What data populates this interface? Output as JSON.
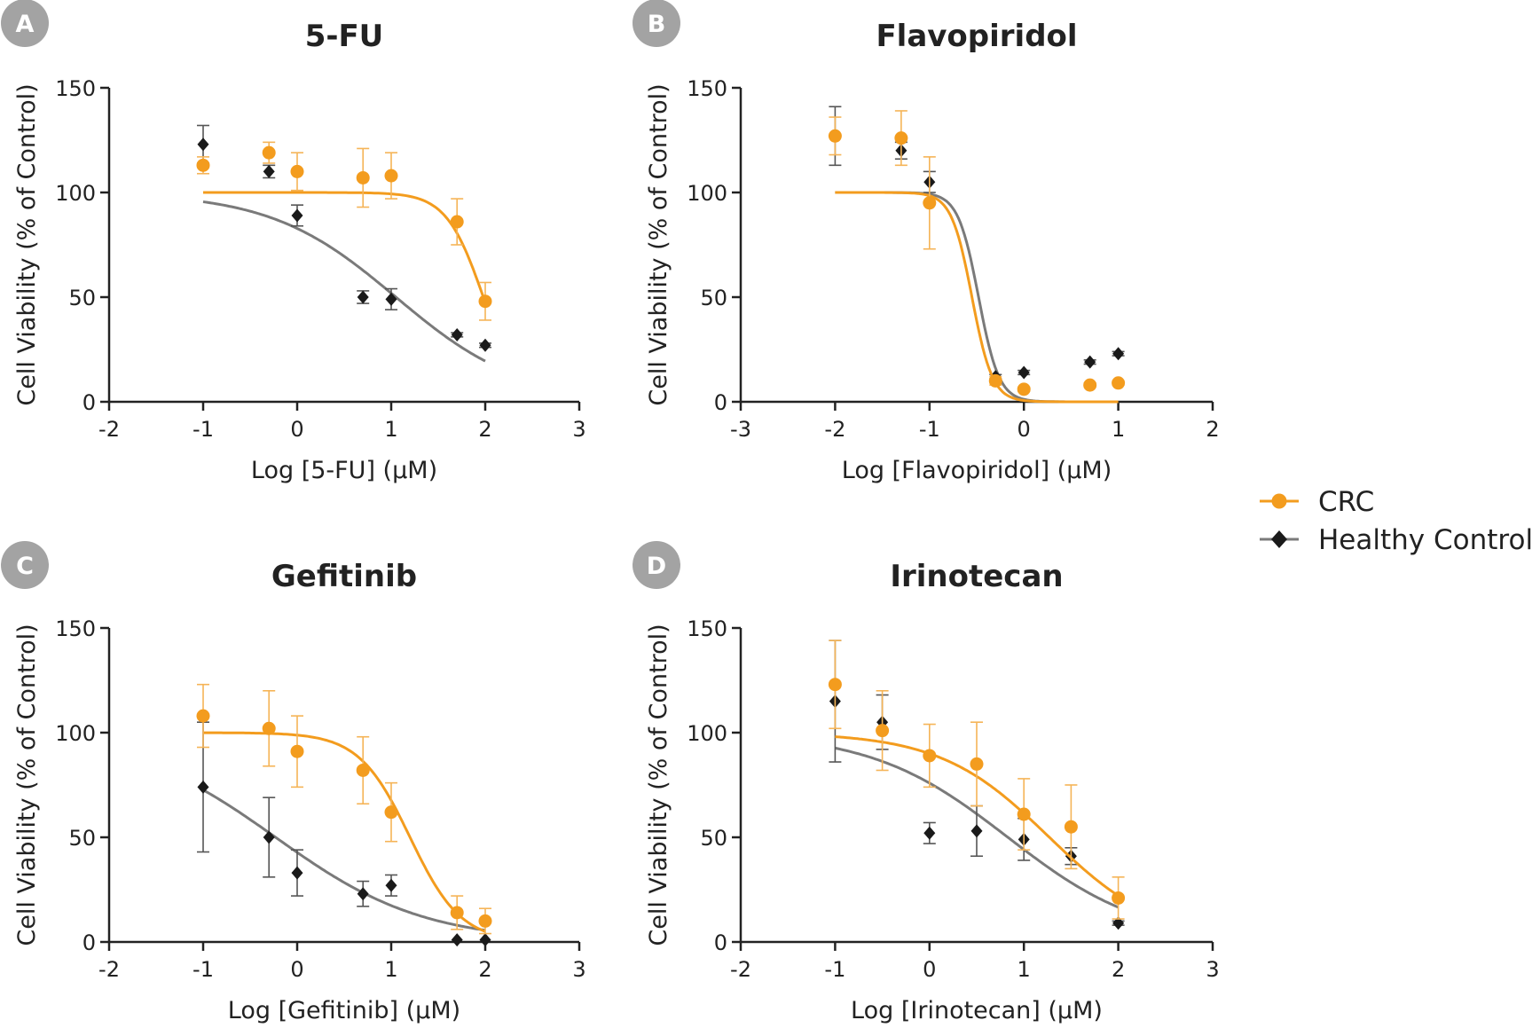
{
  "colors": {
    "crc": "#F39C1E",
    "healthy": "#1a1a1a",
    "healthy_curve": "#7a7a7a",
    "crc_err": "#F5B457",
    "healthy_err": "#555555",
    "badge": "#a3a3a3"
  },
  "legend": {
    "crc_label": "CRC",
    "healthy_label": "Healthy Control"
  },
  "chart_data": [
    {
      "panel": "A",
      "type": "scatter",
      "title": "5-FU",
      "xlabel": "Log [5-FU] (μM)",
      "ylabel": "Cell Viability (% of Control)",
      "xlim": [
        -2,
        3
      ],
      "ylim": [
        0,
        150
      ],
      "xticks": [
        "-2",
        "-1",
        "0",
        "1",
        "2",
        "3"
      ],
      "yticks": [
        "0",
        "50",
        "100",
        "150"
      ],
      "series": [
        {
          "name": "CRC",
          "marker": "circle",
          "points": [
            {
              "x": -1,
              "y": 113,
              "err": 4
            },
            {
              "x": -0.3,
              "y": 119,
              "err": 5
            },
            {
              "x": 0,
              "y": 110,
              "err": 9
            },
            {
              "x": 0.7,
              "y": 107,
              "err": 14
            },
            {
              "x": 1,
              "y": 108,
              "err": 11
            },
            {
              "x": 1.7,
              "y": 86,
              "err": 11
            },
            {
              "x": 2,
              "y": 48,
              "err": 9
            }
          ],
          "fit": {
            "top": 100,
            "bottom": 0,
            "logic50": 1.98,
            "hill": 2.2,
            "xmin": -1,
            "xmax": 2
          }
        },
        {
          "name": "Healthy Control",
          "marker": "diamond",
          "points": [
            {
              "x": -1,
              "y": 123,
              "err": 9
            },
            {
              "x": -0.3,
              "y": 110,
              "err": 3
            },
            {
              "x": 0,
              "y": 89,
              "err": 5
            },
            {
              "x": 0.7,
              "y": 50,
              "err": 3
            },
            {
              "x": 1,
              "y": 49,
              "err": 5
            },
            {
              "x": 1.7,
              "y": 32,
              "err": 1
            },
            {
              "x": 2,
              "y": 27,
              "err": 1
            }
          ],
          "fit": {
            "top": 100,
            "bottom": 0,
            "logic50": 1.05,
            "hill": 0.65,
            "xmin": -1,
            "xmax": 2
          }
        }
      ]
    },
    {
      "panel": "B",
      "type": "scatter",
      "title": "Flavopiridol",
      "xlabel": "Log [Flavopiridol] (μM)",
      "ylabel": "Cell Viability (% of Control)",
      "xlim": [
        -3,
        2
      ],
      "ylim": [
        0,
        150
      ],
      "xticks": [
        "-3",
        "-2",
        "-1",
        "0",
        "1",
        "2"
      ],
      "yticks": [
        "0",
        "50",
        "100",
        "150"
      ],
      "series": [
        {
          "name": "CRC",
          "marker": "circle",
          "points": [
            {
              "x": -2,
              "y": 127,
              "err": 9
            },
            {
              "x": -1.3,
              "y": 126,
              "err": 13
            },
            {
              "x": -1,
              "y": 95,
              "err": 22
            },
            {
              "x": -0.3,
              "y": 10,
              "err": 2
            },
            {
              "x": 0,
              "y": 6,
              "err": 1
            },
            {
              "x": 0.7,
              "y": 8,
              "err": 1
            },
            {
              "x": 1,
              "y": 9,
              "err": 1
            }
          ],
          "fit": {
            "top": 100,
            "bottom": 0,
            "logic50": -0.55,
            "hill": 4,
            "xmin": -2,
            "xmax": 1
          }
        },
        {
          "name": "Healthy Control",
          "marker": "diamond",
          "points": [
            {
              "x": -2,
              "y": 127,
              "err": 14
            },
            {
              "x": -1.3,
              "y": 120,
              "err": 4
            },
            {
              "x": -1,
              "y": 105,
              "err": 5
            },
            {
              "x": -0.3,
              "y": 12,
              "err": 1
            },
            {
              "x": 0,
              "y": 14,
              "err": 1
            },
            {
              "x": 0.7,
              "y": 19,
              "err": 1
            },
            {
              "x": 1,
              "y": 23,
              "err": 1
            }
          ],
          "fit": {
            "top": 100,
            "bottom": 0,
            "logic50": -0.48,
            "hill": 4,
            "xmin": -2,
            "xmax": 1
          }
        }
      ]
    },
    {
      "panel": "C",
      "type": "scatter",
      "title": "Gefitinib",
      "xlabel": "Log [Gefitinib] (μM)",
      "ylabel": "Cell Viability (% of Control)",
      "xlim": [
        -2,
        3
      ],
      "ylim": [
        0,
        150
      ],
      "xticks": [
        "-2",
        "-1",
        "0",
        "1",
        "2",
        "3"
      ],
      "yticks": [
        "0",
        "50",
        "100",
        "150"
      ],
      "series": [
        {
          "name": "CRC",
          "marker": "circle",
          "points": [
            {
              "x": -1,
              "y": 108,
              "err": 15
            },
            {
              "x": -0.3,
              "y": 102,
              "err": 18
            },
            {
              "x": 0,
              "y": 91,
              "err": 17
            },
            {
              "x": 0.7,
              "y": 82,
              "err": 16
            },
            {
              "x": 1,
              "y": 62,
              "err": 14
            },
            {
              "x": 1.7,
              "y": 14,
              "err": 8
            },
            {
              "x": 2,
              "y": 10,
              "err": 6
            }
          ],
          "fit": {
            "top": 100,
            "bottom": 0,
            "logic50": 1.2,
            "hill": 1.6,
            "xmin": -1,
            "xmax": 2
          }
        },
        {
          "name": "Healthy Control",
          "marker": "diamond",
          "points": [
            {
              "x": -1,
              "y": 74,
              "err": 31
            },
            {
              "x": -0.3,
              "y": 50,
              "err": 19
            },
            {
              "x": 0,
              "y": 33,
              "err": 11
            },
            {
              "x": 0.7,
              "y": 23,
              "err": 6
            },
            {
              "x": 1,
              "y": 27,
              "err": 5
            },
            {
              "x": 1.7,
              "y": 1,
              "err": 0
            },
            {
              "x": 2,
              "y": 1,
              "err": 0
            }
          ],
          "fit": {
            "top": 100,
            "bottom": 0,
            "logic50": -0.23,
            "hill": 0.55,
            "xmin": -1,
            "xmax": 2
          }
        }
      ]
    },
    {
      "panel": "D",
      "type": "scatter",
      "title": "Irinotecan",
      "xlabel": "Log [Irinotecan] (μM)",
      "ylabel": "Cell Viability (% of Control)",
      "xlim": [
        -2,
        3
      ],
      "ylim": [
        0,
        150
      ],
      "xticks": [
        "-2",
        "-1",
        "0",
        "1",
        "2",
        "3"
      ],
      "yticks": [
        "0",
        "50",
        "100",
        "150"
      ],
      "series": [
        {
          "name": "CRC",
          "marker": "circle",
          "points": [
            {
              "x": -1,
              "y": 123,
              "err": 21
            },
            {
              "x": -0.5,
              "y": 101,
              "err": 19
            },
            {
              "x": 0,
              "y": 89,
              "err": 15
            },
            {
              "x": 0.5,
              "y": 85,
              "err": 20
            },
            {
              "x": 1,
              "y": 61,
              "err": 17
            },
            {
              "x": 1.5,
              "y": 55,
              "err": 20
            },
            {
              "x": 2,
              "y": 21,
              "err": 10
            }
          ],
          "fit": {
            "top": 100,
            "bottom": 0,
            "logic50": 1.27,
            "hill": 0.75,
            "xmin": -1,
            "xmax": 2
          }
        },
        {
          "name": "Healthy Control",
          "marker": "diamond",
          "points": [
            {
              "x": -1,
              "y": 115,
              "err": 29
            },
            {
              "x": -0.5,
              "y": 105,
              "err": 13
            },
            {
              "x": 0,
              "y": 52,
              "err": 5
            },
            {
              "x": 0.5,
              "y": 53,
              "err": 12
            },
            {
              "x": 1,
              "y": 49,
              "err": 10
            },
            {
              "x": 1.5,
              "y": 41,
              "err": 4
            },
            {
              "x": 2,
              "y": 9,
              "err": 1
            }
          ],
          "fit": {
            "top": 100,
            "bottom": 0,
            "logic50": 0.83,
            "hill": 0.6,
            "xmin": -1,
            "xmax": 2
          }
        }
      ]
    }
  ]
}
